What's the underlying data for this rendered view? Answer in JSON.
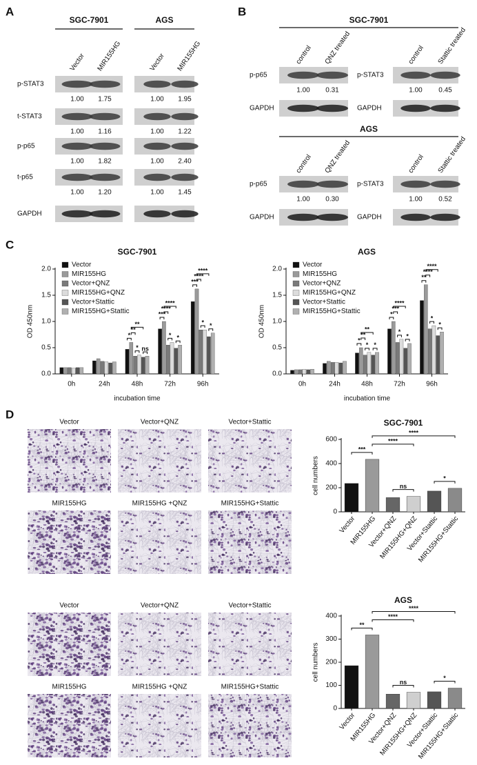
{
  "panel_labels": [
    "A",
    "B",
    "C",
    "D"
  ],
  "panel_a": {
    "groups": [
      {
        "name": "SGC-7901",
        "lanes": [
          "Vector",
          "MIR155HG"
        ]
      },
      {
        "name": "AGS",
        "lanes": [
          "Vector",
          "MIR155HG"
        ]
      }
    ],
    "rows": [
      {
        "label": "p-STAT3",
        "values": [
          "1.00",
          "1.75",
          "1.00",
          "1.95"
        ]
      },
      {
        "label": "t-STAT3",
        "values": [
          "1.00",
          "1.16",
          "1.00",
          "1.22"
        ]
      },
      {
        "label": "p-p65",
        "values": [
          "1.00",
          "1.82",
          "1.00",
          "2.40"
        ]
      },
      {
        "label": "t-p65",
        "values": [
          "1.00",
          "1.20",
          "1.00",
          "1.45"
        ]
      },
      {
        "label": "GAPDH"
      }
    ]
  },
  "panel_b": {
    "sections": [
      {
        "name": "SGC-7901",
        "blots": [
          {
            "lanes": [
              "control",
              "QNZ treated"
            ],
            "rows": [
              {
                "label": "p-p65",
                "values": [
                  "1.00",
                  "0.31"
                ]
              },
              {
                "label": "GAPDH"
              }
            ]
          },
          {
            "lanes": [
              "control",
              "Stattic treated"
            ],
            "rows": [
              {
                "label": "p-STAT3",
                "values": [
                  "1.00",
                  "0.45"
                ]
              },
              {
                "label": "GAPDH"
              }
            ]
          }
        ]
      },
      {
        "name": "AGS",
        "blots": [
          {
            "lanes": [
              "control",
              "QNZ treated"
            ],
            "rows": [
              {
                "label": "p-p65",
                "values": [
                  "1.00",
                  "0.30"
                ]
              },
              {
                "label": "GAPDH"
              }
            ]
          },
          {
            "lanes": [
              "control",
              "Stattic treated"
            ],
            "rows": [
              {
                "label": "p-STAT3",
                "values": [
                  "1.00",
                  "0.52"
                ]
              },
              {
                "label": "GAPDH"
              }
            ]
          }
        ]
      }
    ]
  },
  "panel_d_images": [
    {
      "labels": [
        "Vector",
        "Vector+QNZ",
        "Vector+Stattic",
        "MIR155HG",
        "MIR155HG +QNZ",
        "MIR155HG+Stattic"
      ]
    },
    {
      "labels": [
        "Vector",
        "Vector+QNZ",
        "Vector+Stattic",
        "MIR155HG",
        "MIR155HG +QNZ",
        "MIR155HG+Stattic"
      ]
    }
  ],
  "chart_data": [
    {
      "type": "grouped_bar",
      "title": "SGC-7901",
      "x_label": "incubation time",
      "y_label": "OD 450nm",
      "categories": [
        "0h",
        "24h",
        "48h",
        "72h",
        "96h"
      ],
      "series": [
        {
          "name": "Vector",
          "color": "#111111",
          "values": [
            0.12,
            0.25,
            0.47,
            0.86,
            1.38
          ]
        },
        {
          "name": "MIR155HG",
          "color": "#9a9a9a",
          "values": [
            0.12,
            0.29,
            0.6,
            1.0,
            1.62
          ]
        },
        {
          "name": "Vector+QNZ",
          "color": "#7a7a7a",
          "values": [
            0.12,
            0.24,
            0.34,
            0.55,
            0.84
          ]
        },
        {
          "name": "MIR155HG+QNZ",
          "color": "#dcdcdc",
          "values": [
            0.11,
            0.23,
            0.36,
            0.6,
            0.84
          ]
        },
        {
          "name": "Vector+Stattic",
          "color": "#555555",
          "values": [
            0.12,
            0.21,
            0.32,
            0.49,
            0.71
          ]
        },
        {
          "name": "MIR155HG+Stattic",
          "color": "#b0b0b0",
          "values": [
            0.12,
            0.23,
            0.34,
            0.55,
            0.78
          ]
        }
      ],
      "ylim": [
        0,
        2.0
      ],
      "yticks": [
        {
          "value": 0,
          "label": "0.0"
        },
        0.5,
        {
          "value": 1,
          "label": "1.0"
        },
        1.5,
        {
          "value": 2,
          "label": "2.0"
        }
      ],
      "significance": [
        null,
        null,
        [
          "*",
          "**",
          "**",
          "*",
          "ns"
        ],
        [
          "***",
          "****",
          "****",
          "*",
          "*"
        ],
        [
          "***",
          "****",
          "****",
          "*",
          "*"
        ]
      ]
    },
    {
      "type": "grouped_bar",
      "title": "AGS",
      "x_label": "incubation time",
      "y_label": "OD 450nm",
      "categories": [
        "0h",
        "24h",
        "48h",
        "72h",
        "96h"
      ],
      "series": [
        {
          "name": "Vector",
          "color": "#111111",
          "values": [
            0.07,
            0.2,
            0.4,
            0.86,
            1.4
          ]
        },
        {
          "name": "MIR155HG",
          "color": "#9a9a9a",
          "values": [
            0.08,
            0.24,
            0.5,
            1.0,
            1.7
          ]
        },
        {
          "name": "Vector+QNZ",
          "color": "#7a7a7a",
          "values": [
            0.08,
            0.22,
            0.36,
            0.6,
            0.86
          ]
        },
        {
          "name": "MIR155HG+QNZ",
          "color": "#dcdcdc",
          "values": [
            0.09,
            0.22,
            0.41,
            0.66,
            0.92
          ]
        },
        {
          "name": "Vector+Stattic",
          "color": "#555555",
          "values": [
            0.08,
            0.21,
            0.36,
            0.49,
            0.73
          ]
        },
        {
          "name": "MIR155HG+Stattic",
          "color": "#b0b0b0",
          "values": [
            0.09,
            0.24,
            0.41,
            0.58,
            0.8
          ]
        }
      ],
      "ylim": [
        0,
        2.0
      ],
      "yticks": [
        {
          "value": 0,
          "label": "0.0"
        },
        0.5,
        {
          "value": 1,
          "label": "1.0"
        },
        1.5,
        {
          "value": 2,
          "label": "2.0"
        }
      ],
      "significance": [
        null,
        null,
        [
          "*",
          "**",
          "**",
          "*",
          "*"
        ],
        [
          "*",
          "***",
          "****",
          "*",
          "*"
        ],
        [
          "**",
          "****",
          "****",
          "*",
          "*"
        ]
      ]
    },
    {
      "type": "bar",
      "title": "SGC-7901",
      "y_label": "cell numbers",
      "categories": [
        "Vector",
        "MIR155HG",
        "Vector+QNZ",
        "MIR155HG+QNZ",
        "Vector+Stattic",
        "MIR155HG+Stattic"
      ],
      "values": [
        235,
        435,
        118,
        128,
        172,
        195
      ],
      "colors": [
        "#111111",
        "#9a9a9a",
        "#666666",
        "#cfcfcf",
        "#555555",
        "#8a8a8a"
      ],
      "ylim": [
        0,
        600
      ],
      "yticks": [
        0,
        200,
        400,
        600
      ],
      "significance": [
        "***",
        "****",
        "****",
        "ns",
        "*"
      ]
    },
    {
      "type": "bar",
      "title": "AGS",
      "y_label": "cell numbers",
      "categories": [
        "Vector",
        "MIR155HG",
        "Vector+QNZ",
        "MIR155HG+QNZ",
        "Vector+Stattic",
        "MIR155HG+Stattic"
      ],
      "values": [
        185,
        318,
        62,
        70,
        72,
        88
      ],
      "colors": [
        "#111111",
        "#9a9a9a",
        "#666666",
        "#cfcfcf",
        "#555555",
        "#8a8a8a"
      ],
      "ylim": [
        0,
        400
      ],
      "yticks": [
        0,
        100,
        200,
        300,
        400
      ],
      "significance": [
        "**",
        "****",
        "****",
        "ns",
        "*"
      ]
    }
  ]
}
